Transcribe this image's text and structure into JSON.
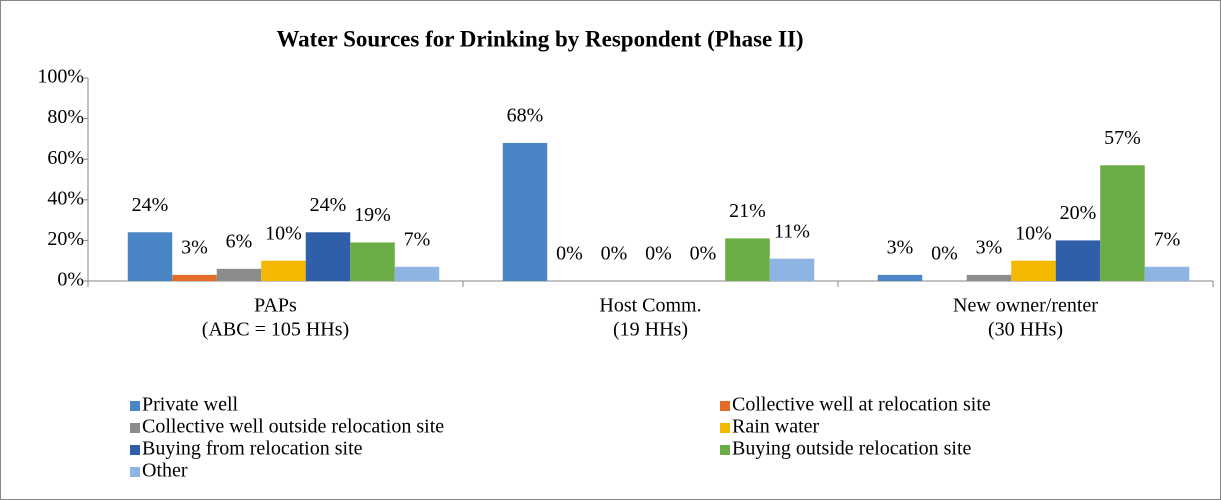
{
  "chart_data": {
    "type": "bar",
    "title": "Water Sources for Drinking by Respondent (Phase II)",
    "categories": [
      [
        "PAPs",
        "(ABC = 105 HHs)"
      ],
      [
        "Host Comm.",
        "(19 HHs)"
      ],
      [
        "New owner/renter",
        "(30 HHs)"
      ]
    ],
    "series": [
      {
        "name": "Private well",
        "color": "#4a86c5",
        "values": [
          24,
          68,
          3
        ],
        "value_labels": [
          "24%",
          "68%",
          "3%"
        ]
      },
      {
        "name": "Collective well at relocation site",
        "color": "#e36c2a",
        "values": [
          3,
          0,
          0
        ],
        "value_labels": [
          "3%",
          "0%",
          "0%"
        ]
      },
      {
        "name": "Collective well outside relocation site",
        "color": "#8c8c8c",
        "values": [
          6,
          0,
          3
        ],
        "value_labels": [
          "6%",
          "0%",
          "3%"
        ]
      },
      {
        "name": "Rain water",
        "color": "#f5b800",
        "values": [
          10,
          0,
          10
        ],
        "value_labels": [
          "10%",
          "0%",
          "10%"
        ]
      },
      {
        "name": "Buying from relocation site",
        "color": "#2e5fa8",
        "values": [
          24,
          0,
          20
        ],
        "value_labels": [
          "24%",
          "0%",
          "20%"
        ]
      },
      {
        "name": "Buying outside relocation site",
        "color": "#6aac46",
        "values": [
          19,
          21,
          57
        ],
        "value_labels": [
          "19%",
          "21%",
          "57%"
        ]
      },
      {
        "name": "Other",
        "color": "#8db4e2",
        "values": [
          7,
          11,
          7
        ],
        "value_labels": [
          "7%",
          "11%",
          "7%"
        ]
      }
    ],
    "ylim": [
      0,
      100
    ],
    "yticks": [
      {
        "value": 0,
        "label": "0%"
      },
      {
        "value": 20,
        "label": "20%"
      },
      {
        "value": 40,
        "label": "40%"
      },
      {
        "value": 60,
        "label": "60%"
      },
      {
        "value": 80,
        "label": "80%"
      },
      {
        "value": 100,
        "label": "100%"
      }
    ],
    "grid": false,
    "legend": "bottom"
  }
}
